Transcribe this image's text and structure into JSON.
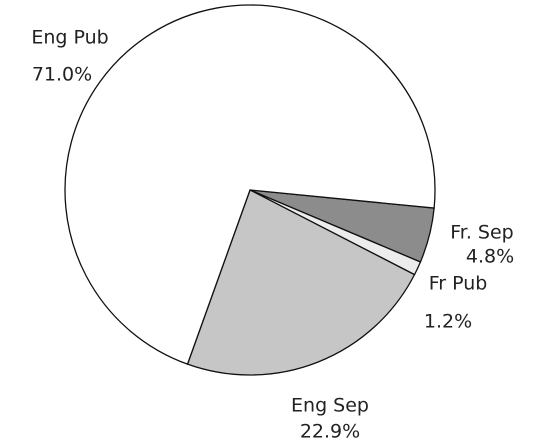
{
  "chart_data": {
    "type": "pie",
    "categories": [
      "Fr. Sep",
      "Fr Pub",
      "Eng Sep",
      "Eng Pub"
    ],
    "values": [
      4.8,
      1.2,
      22.9,
      71.0
    ],
    "value_labels": [
      "4.8%",
      "1.2%",
      "22.9%",
      "71.0%"
    ],
    "colors": [
      "#8c8c8c",
      "#ececec",
      "#c6c6c6",
      "#ffffff"
    ]
  }
}
